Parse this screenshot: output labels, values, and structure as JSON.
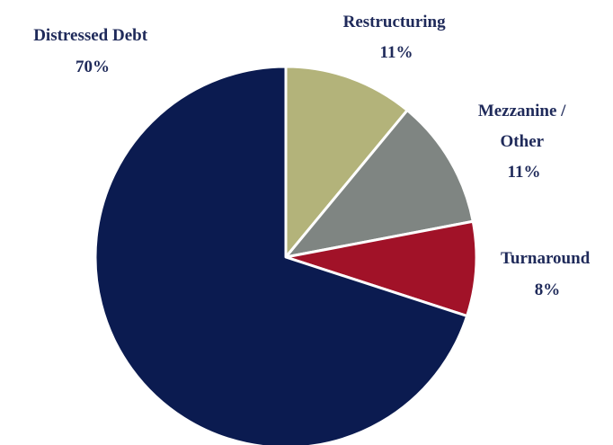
{
  "chart_data": {
    "type": "pie",
    "title": "",
    "start_angle_deg": 0,
    "direction": "clockwise",
    "slices": [
      {
        "label_lines": [
          "Restructuring",
          "11%"
        ],
        "value": 11,
        "color": "#b3b37a"
      },
      {
        "label_lines": [
          "Mezzanine /",
          "Other",
          "11%"
        ],
        "value": 11,
        "color": "#7f8582"
      },
      {
        "label_lines": [
          "Turnaround",
          "8%"
        ],
        "value": 8,
        "color": "#a11228"
      },
      {
        "label_lines": [
          "Distressed Debt",
          "70%"
        ],
        "value": 70,
        "color": "#0b1b50"
      }
    ],
    "label_color": "#1f2a5a",
    "legend": "none"
  }
}
